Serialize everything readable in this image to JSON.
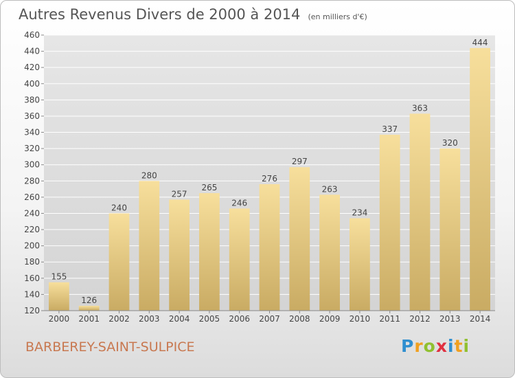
{
  "title": "Autres Revenus Divers de 2000 à 2014",
  "unit_note": "(en milliers d'€)",
  "town": "BARBEREY-SAINT-SULPICE",
  "logo": {
    "text": "Proxiti",
    "letters": [
      {
        "ch": "P",
        "color": "#2f8fd0"
      },
      {
        "ch": "r",
        "color": "#f0a020"
      },
      {
        "ch": "o",
        "color": "#90c030"
      },
      {
        "ch": "x",
        "color": "#e03040"
      },
      {
        "ch": "i",
        "color": "#2f8fd0"
      },
      {
        "ch": "t",
        "color": "#f0a020"
      },
      {
        "ch": "i",
        "color": "#90c030"
      }
    ]
  },
  "chart_data": {
    "type": "bar",
    "title": "Autres Revenus Divers de 2000 à 2014",
    "xlabel": "",
    "ylabel": "",
    "categories": [
      "2000",
      "2001",
      "2002",
      "2003",
      "2004",
      "2005",
      "2006",
      "2007",
      "2008",
      "2009",
      "2010",
      "2011",
      "2012",
      "2013",
      "2014"
    ],
    "values": [
      155,
      126,
      240,
      280,
      257,
      265,
      246,
      276,
      297,
      263,
      234,
      337,
      363,
      320,
      444
    ],
    "ylim": [
      120,
      460
    ],
    "yticks": [
      120,
      140,
      160,
      180,
      200,
      220,
      240,
      260,
      280,
      300,
      320,
      340,
      360,
      380,
      400,
      420,
      440,
      460
    ],
    "grid": true,
    "bar_color": "#e8c97a"
  }
}
